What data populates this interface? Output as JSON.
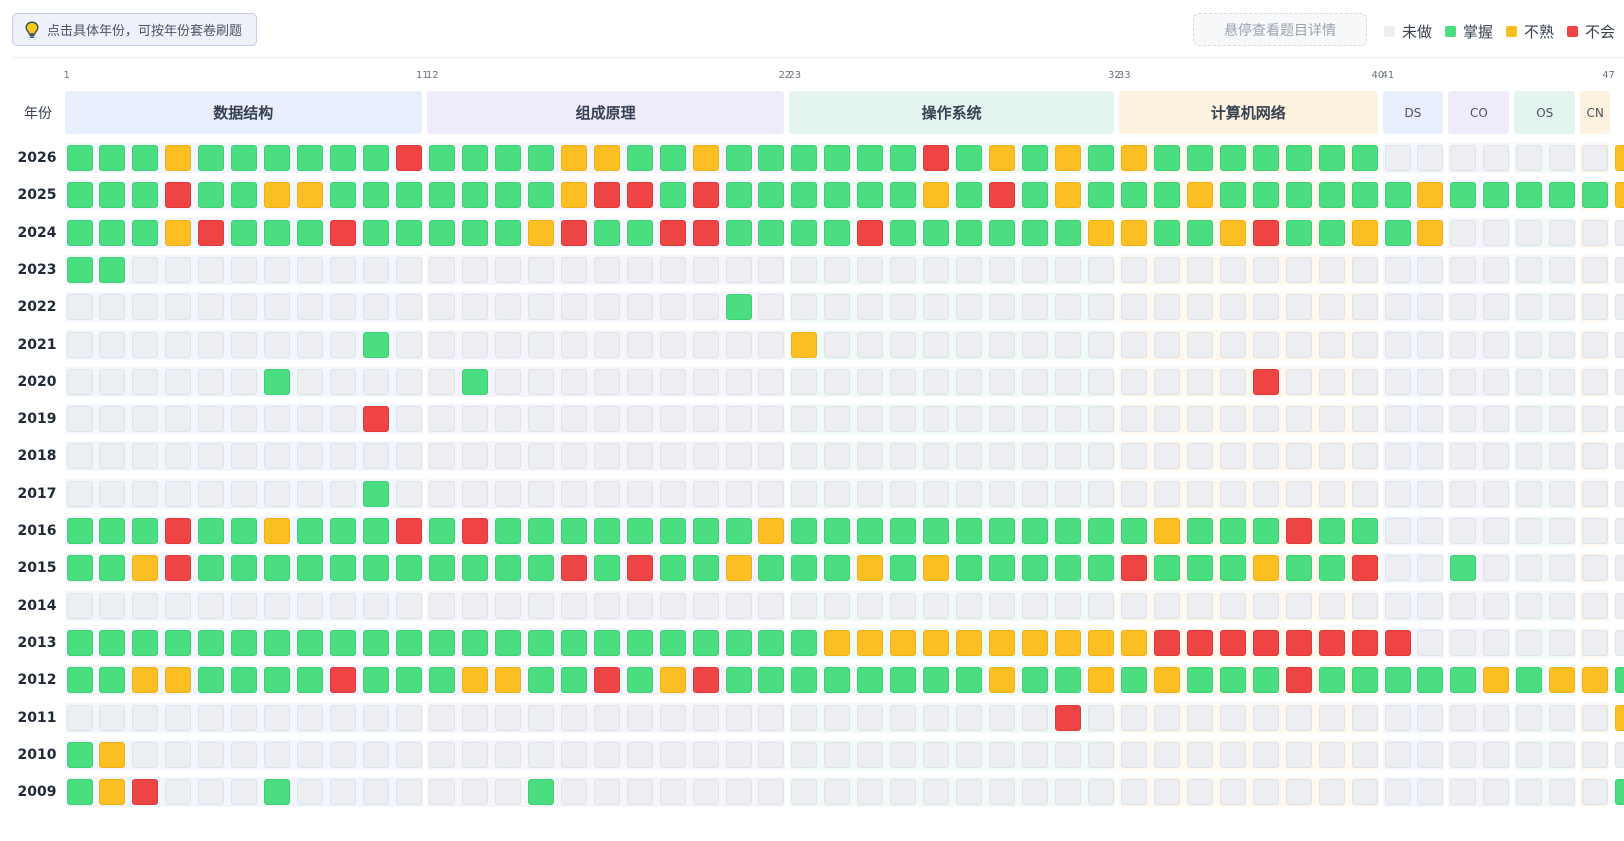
{
  "hint": {
    "text": "点击具体年份，可按年份套卷刷题",
    "icon": "lightbulb-icon"
  },
  "hover_hint": "悬停查看题目详情",
  "legend": [
    {
      "label": "未做",
      "color": "#eceef2"
    },
    {
      "label": "掌握",
      "color": "#4ade80"
    },
    {
      "label": "不熟",
      "color": "#fbbf24"
    },
    {
      "label": "不会",
      "color": "#ef4444"
    }
  ],
  "year_header": "年份",
  "question_numbers": [
    "1",
    "11",
    "12",
    "22",
    "23",
    "32",
    "33",
    "40",
    "41",
    "47"
  ],
  "sections": [
    {
      "label": "数据结构",
      "bg": "#e7effd"
    },
    {
      "label": "组成原理",
      "bg": "#efebfb"
    },
    {
      "label": "操作系统",
      "bg": "#e3f5ee"
    },
    {
      "label": "计算机网络",
      "bg": "#fdf2e0"
    },
    {
      "label": "DS",
      "bg": "#e7effd"
    },
    {
      "label": "CO",
      "bg": "#efebfb"
    },
    {
      "label": "OS",
      "bg": "#e3f5ee"
    },
    {
      "label": "CN",
      "bg": "#fdf2e0"
    }
  ],
  "status_colors": {
    "0": "未做",
    "1": "掌握",
    "2": "不熟",
    "3": "不会"
  },
  "years": [
    {
      "year": "2026",
      "cells": "111211111131111221121111113121212111111100000002"
    },
    {
      "year": "2025",
      "cells": "111311221111111233131111112131211121111112111112"
    },
    {
      "year": "2024",
      "cells": "111231113111112311331111311111122112311212000000"
    },
    {
      "year": "2023",
      "cells": "110000000000000000000000000000000000000000000000"
    },
    {
      "year": "2022",
      "cells": "000000000000000000001000000000000000000000000000"
    },
    {
      "year": "2021",
      "cells": "000000000100000000000020000000000000000000000000"
    },
    {
      "year": "2020",
      "cells": "000000100000100000000000000000000000300000000000"
    },
    {
      "year": "2019",
      "cells": "000000000300000000000000000000000000000000000000"
    },
    {
      "year": "2018",
      "cells": "000000000000000000000000000000000000000000000000"
    },
    {
      "year": "2017",
      "cells": "000000000100000000000000000000000000000000000000"
    },
    {
      "year": "2016",
      "cells": "111311211131311111111211111111111211131100000000"
    },
    {
      "year": "2015",
      "cells": "112311111111111313112111212111113111211300100000"
    },
    {
      "year": "2014",
      "cells": "000000000000000000000000000000000000000000000000"
    },
    {
      "year": "2013",
      "cells": "111111111111111111111112222222222333333330000000"
    },
    {
      "year": "2012",
      "cells": "112211113111221131231111111121121211131111121221"
    },
    {
      "year": "2011",
      "cells": "000000000000000000000000000000300000000000000002"
    },
    {
      "year": "2010",
      "cells": "120000000000000000000000000000000000000000000000"
    },
    {
      "year": "2009",
      "cells": "123000100000001000000000000000000000000000000001"
    }
  ]
}
